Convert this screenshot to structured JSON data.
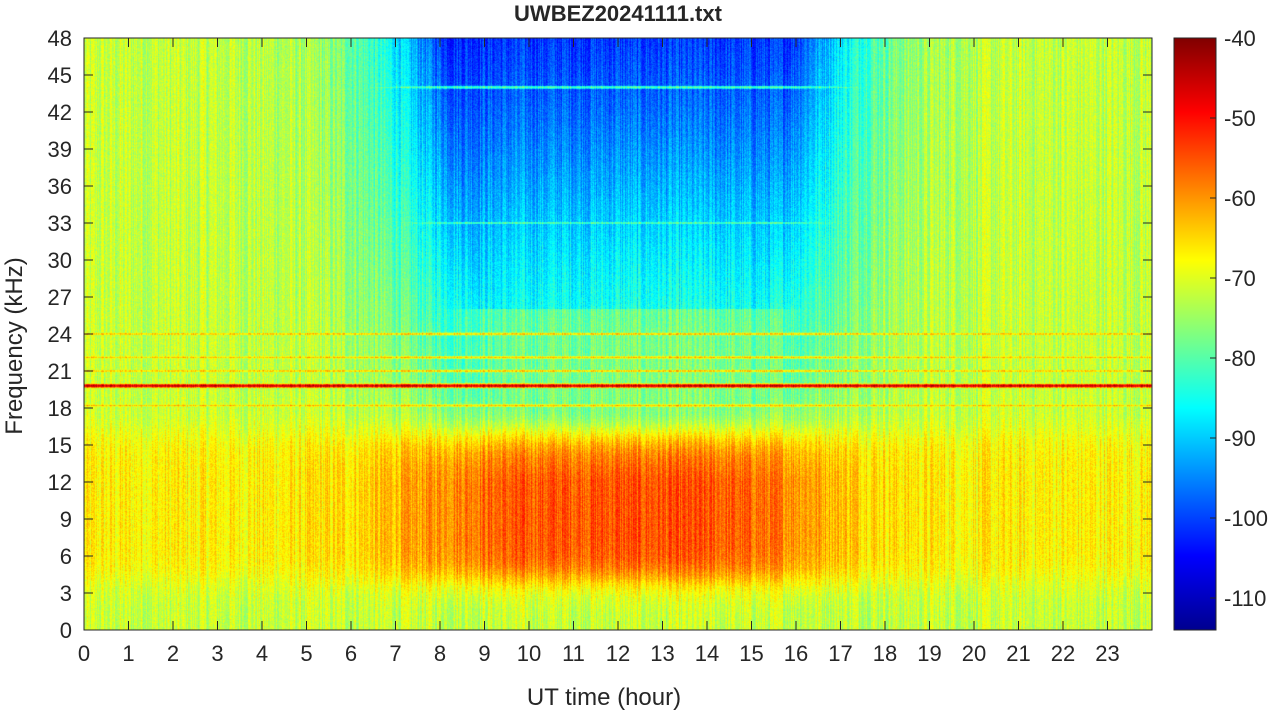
{
  "chart_data": {
    "type": "heatmap",
    "title": "UWBEZ20241111.txt",
    "xlabel": "UT time (hour)",
    "ylabel": "Frequency (kHz)",
    "xlim": [
      0,
      24
    ],
    "ylim": [
      0,
      48
    ],
    "x_ticks": [
      0,
      1,
      2,
      3,
      4,
      5,
      6,
      7,
      8,
      9,
      10,
      11,
      12,
      13,
      14,
      15,
      16,
      17,
      18,
      19,
      20,
      21,
      22,
      23
    ],
    "y_ticks": [
      0,
      3,
      6,
      9,
      12,
      15,
      18,
      21,
      24,
      27,
      30,
      33,
      36,
      39,
      42,
      45,
      48
    ],
    "colorbar": {
      "colormap": "jet",
      "range": [
        -114,
        -40
      ],
      "ticks": [
        -110,
        -100,
        -90,
        -80,
        -70,
        -60,
        -50,
        -40
      ]
    },
    "features": {
      "narrowband_lines_khz": [
        19.8,
        18.2,
        21.0,
        22.1,
        24.0,
        33.0,
        44.0
      ],
      "strongest_line_khz": 19.8,
      "broadband_band_khz": [
        4,
        16
      ],
      "broadband_peak_hours": [
        9,
        15
      ],
      "broadband_peak_level": -55
    }
  }
}
